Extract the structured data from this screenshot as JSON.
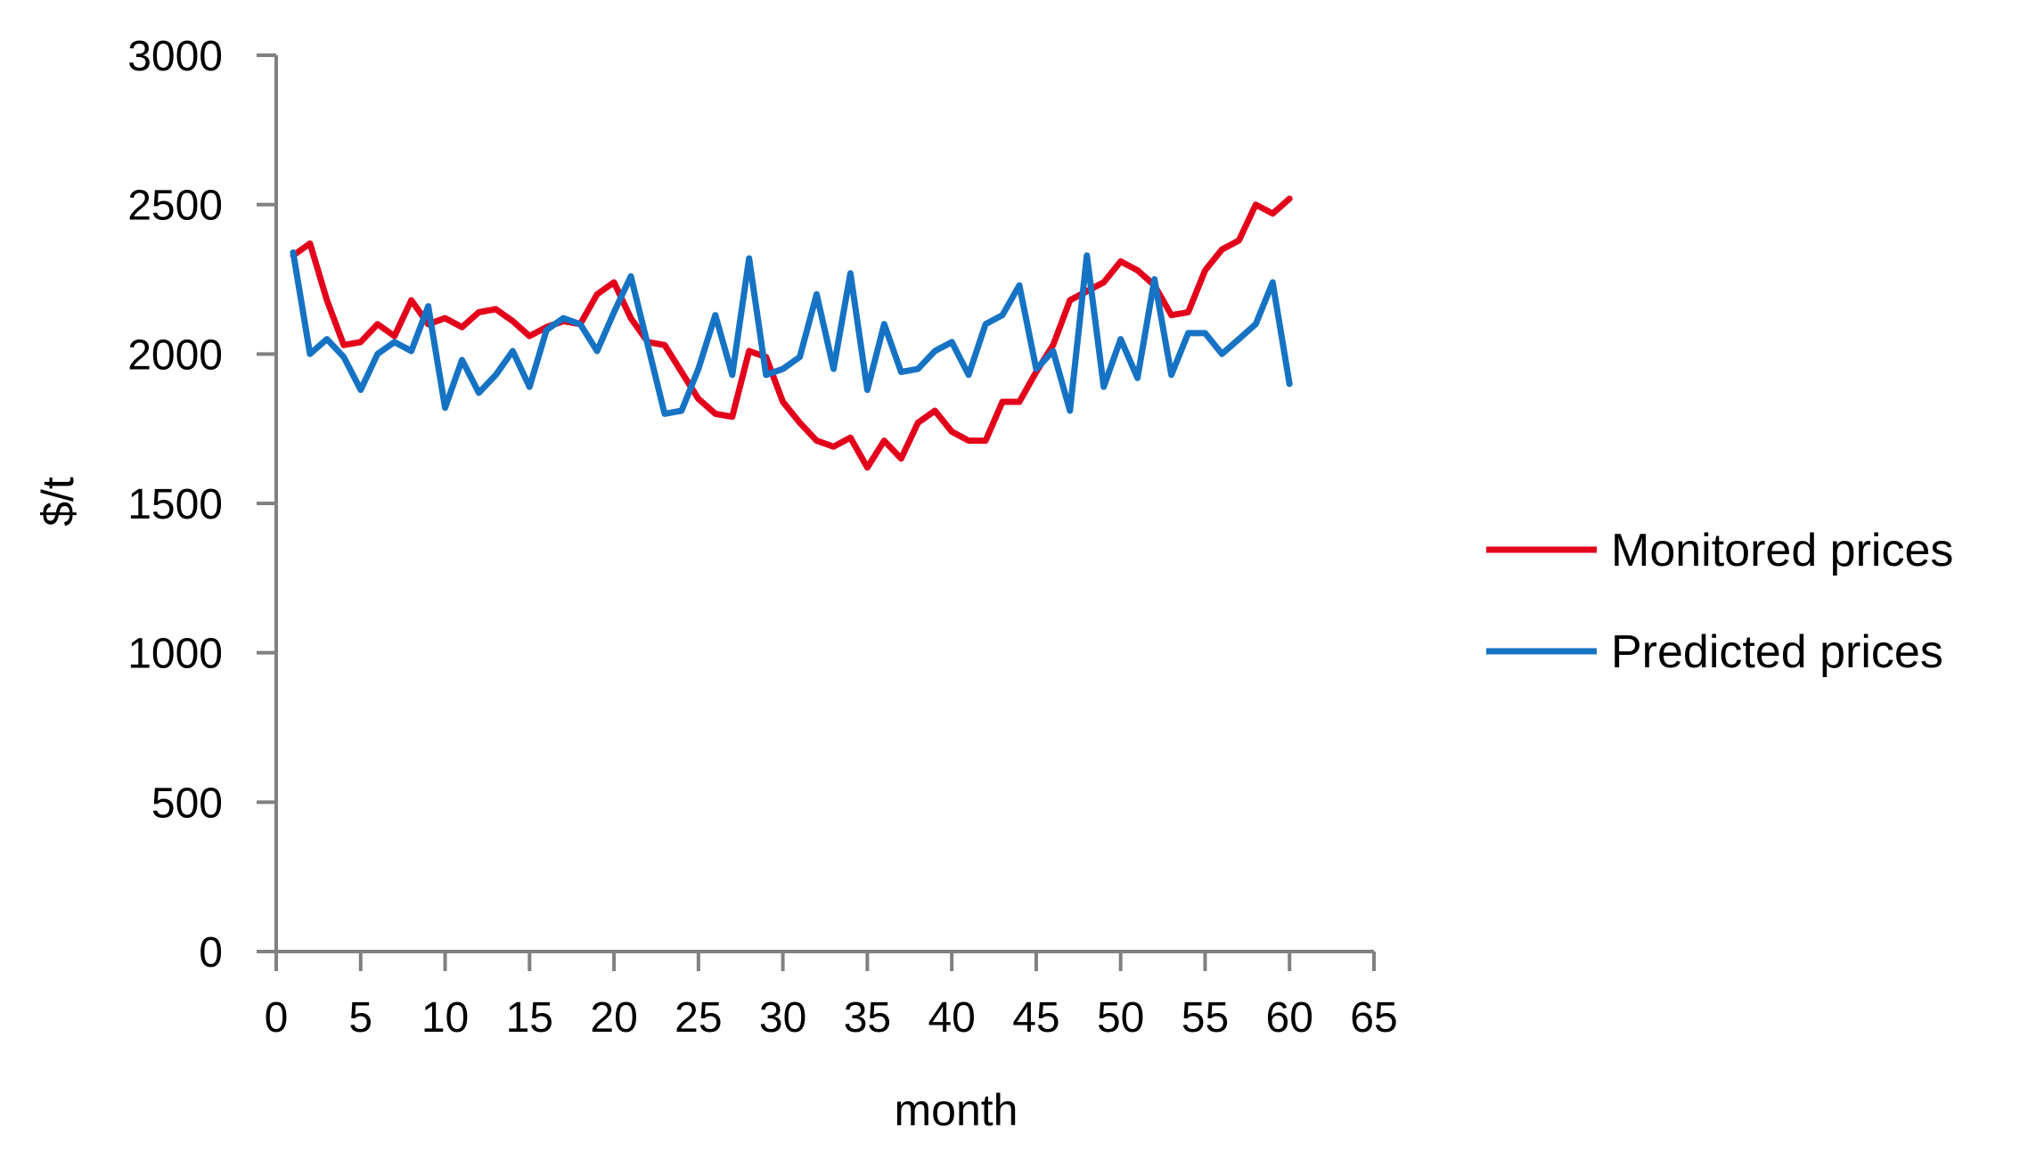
{
  "chart_data": {
    "type": "line",
    "title": "",
    "xlabel": "month",
    "ylabel": "$/t",
    "xlim": [
      0,
      65
    ],
    "ylim": [
      0,
      3000
    ],
    "x_ticks": [
      0,
      5,
      10,
      15,
      20,
      25,
      30,
      35,
      40,
      45,
      50,
      55,
      60,
      65
    ],
    "y_ticks": [
      0,
      500,
      1000,
      1500,
      2000,
      2500,
      3000
    ],
    "grid": false,
    "legend_position": "right",
    "x": [
      1,
      2,
      3,
      4,
      5,
      6,
      7,
      8,
      9,
      10,
      11,
      12,
      13,
      14,
      15,
      16,
      17,
      18,
      19,
      20,
      21,
      22,
      23,
      24,
      25,
      26,
      27,
      28,
      29,
      30,
      31,
      32,
      33,
      34,
      35,
      36,
      37,
      38,
      39,
      40,
      41,
      42,
      43,
      44,
      45,
      46,
      47,
      48,
      49,
      50,
      51,
      52,
      53,
      54,
      55,
      56,
      57,
      58,
      59,
      60
    ],
    "series": [
      {
        "name": "Monitored prices",
        "color": "#e3001b",
        "values": [
          2330,
          2370,
          2180,
          2030,
          2040,
          2100,
          2060,
          2180,
          2100,
          2120,
          2090,
          2140,
          2150,
          2110,
          2060,
          2090,
          2110,
          2100,
          2200,
          2240,
          2120,
          2040,
          2030,
          1940,
          1850,
          1800,
          1790,
          2010,
          1990,
          1840,
          1770,
          1710,
          1690,
          1720,
          1620,
          1710,
          1650,
          1770,
          1810,
          1740,
          1710,
          1710,
          1840,
          1840,
          1940,
          2030,
          2180,
          2210,
          2240,
          2310,
          2280,
          2230,
          2130,
          2140,
          2280,
          2350,
          2380,
          2500,
          2470,
          2520
        ]
      },
      {
        "name": "Predicted prices",
        "color": "#1673c4",
        "values": [
          2340,
          2000,
          2050,
          1990,
          1880,
          2000,
          2040,
          2010,
          2160,
          1820,
          1980,
          1870,
          1930,
          2010,
          1890,
          2080,
          2120,
          2100,
          2010,
          2140,
          2260,
          2030,
          1800,
          1810,
          1950,
          2130,
          1930,
          2320,
          1930,
          1950,
          1990,
          2200,
          1950,
          2270,
          1880,
          2100,
          1940,
          1950,
          2010,
          2040,
          1930,
          2100,
          2130,
          2230,
          1950,
          2010,
          1810,
          2330,
          1890,
          2050,
          1920,
          2250,
          1930,
          2070,
          2070,
          2000,
          2050,
          2100,
          2240,
          1900
        ]
      }
    ]
  }
}
